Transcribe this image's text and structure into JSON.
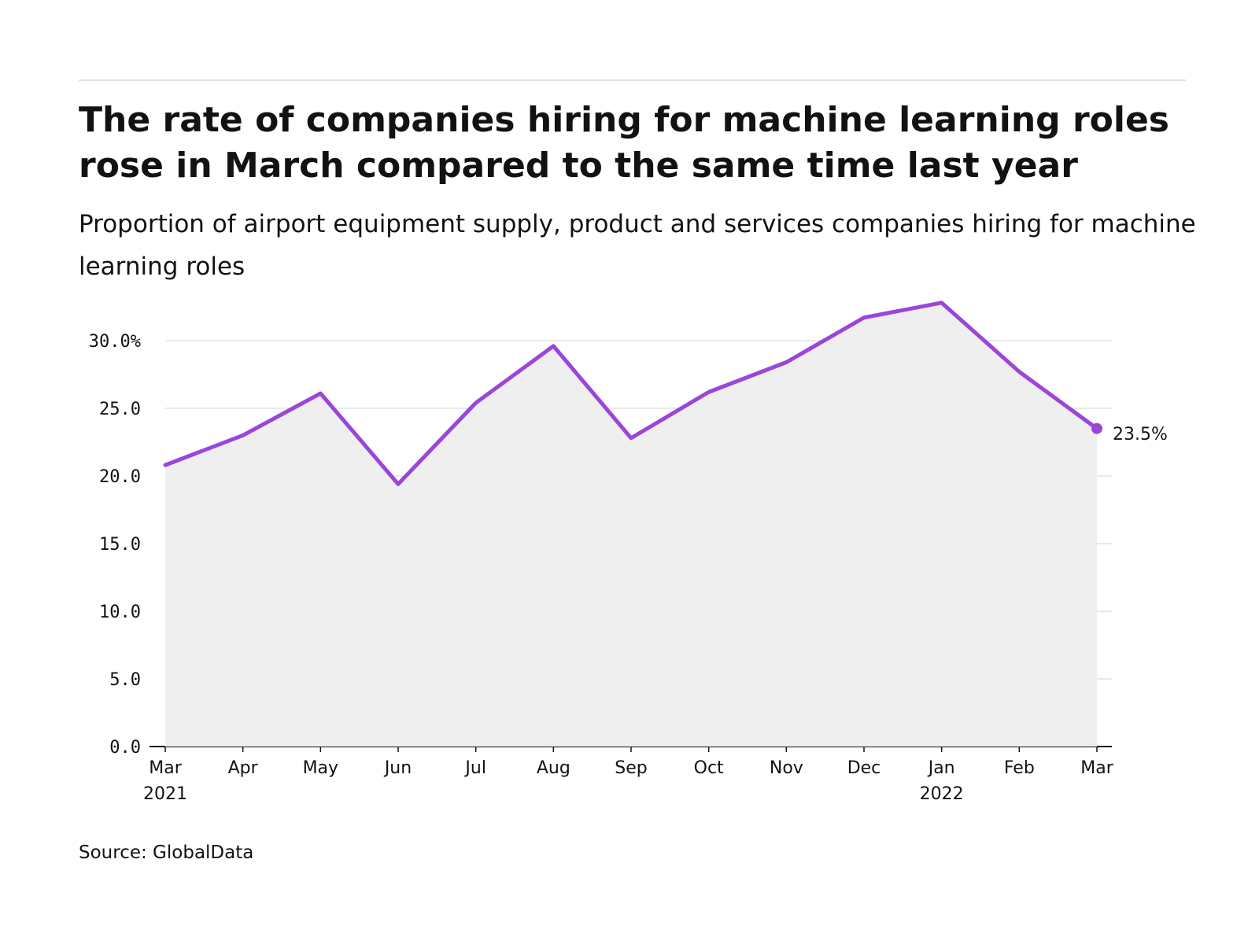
{
  "header": {
    "title": "The rate of companies hiring for machine learning roles rose in March compared to the same time last year",
    "subtitle": "Proportion of airport equipment supply, product and services companies hiring for machine learning roles"
  },
  "footer": {
    "source": "Source: GlobalData"
  },
  "colors": {
    "line": "#9b45d9",
    "area": "#efefef",
    "grid": "#e2e2e2",
    "axis": "#121212",
    "text": "#121212"
  },
  "chart_data": {
    "type": "area",
    "categories": [
      "Mar",
      "Apr",
      "May",
      "Jun",
      "Jul",
      "Aug",
      "Sep",
      "Oct",
      "Nov",
      "Dec",
      "Jan",
      "Feb",
      "Mar"
    ],
    "year_labels": [
      "2021",
      "",
      "",
      "",
      "",
      "",
      "",
      "",
      "",
      "",
      "2022",
      "",
      ""
    ],
    "values": [
      20.8,
      23.0,
      26.1,
      19.4,
      25.4,
      29.6,
      22.8,
      26.2,
      28.4,
      31.7,
      32.8,
      27.7,
      23.5
    ],
    "ylim": [
      0,
      30
    ],
    "yticks": [
      "0.0",
      "5.0",
      "10.0",
      "15.0",
      "20.0",
      "25.0",
      "30.0%"
    ],
    "end_label": "23.5%",
    "grid": true,
    "legend": "none"
  }
}
